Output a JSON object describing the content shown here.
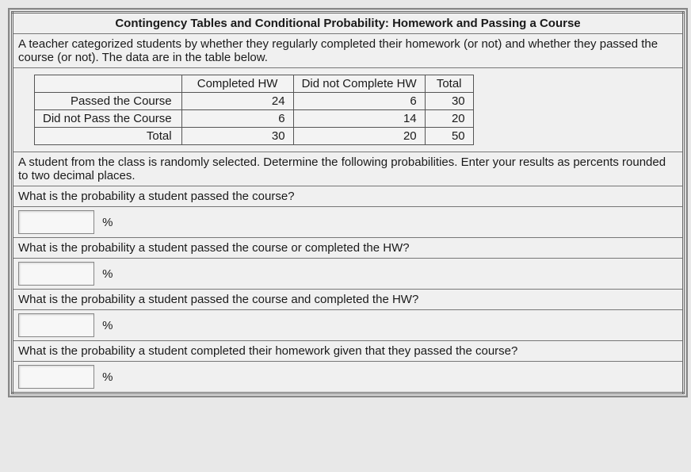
{
  "title": "Contingency Tables and Conditional Probability: Homework and Passing a Course",
  "intro": "A teacher categorized students by whether they regularly completed their homework (or not) and whether they passed the course (or not). The data are in the table below.",
  "table": {
    "columns": [
      "",
      "Completed HW",
      "Did not Complete HW",
      "Total"
    ],
    "rows": [
      {
        "label": "Passed the Course",
        "c1": 24,
        "c2": 6,
        "total": 30
      },
      {
        "label": "Did not Pass the Course",
        "c1": 6,
        "c2": 14,
        "total": 20
      },
      {
        "label": "Total",
        "c1": 30,
        "c2": 20,
        "total": 50
      }
    ]
  },
  "instruction": "A student from the class is randomly selected. Determine the following probabilities. Enter your results as percents rounded to two decimal places.",
  "q1": "What is the probability a student passed the course?",
  "q2": "What is the probability a student passed the course or completed the HW?",
  "q3": "What is the probability a student passed the course and completed the HW?",
  "q4": "What is the probability a student completed their homework given that they passed the course?",
  "pct_symbol": "%",
  "colors": {
    "border": "#777777",
    "background": "#efefef",
    "text": "#1a1a1a"
  }
}
